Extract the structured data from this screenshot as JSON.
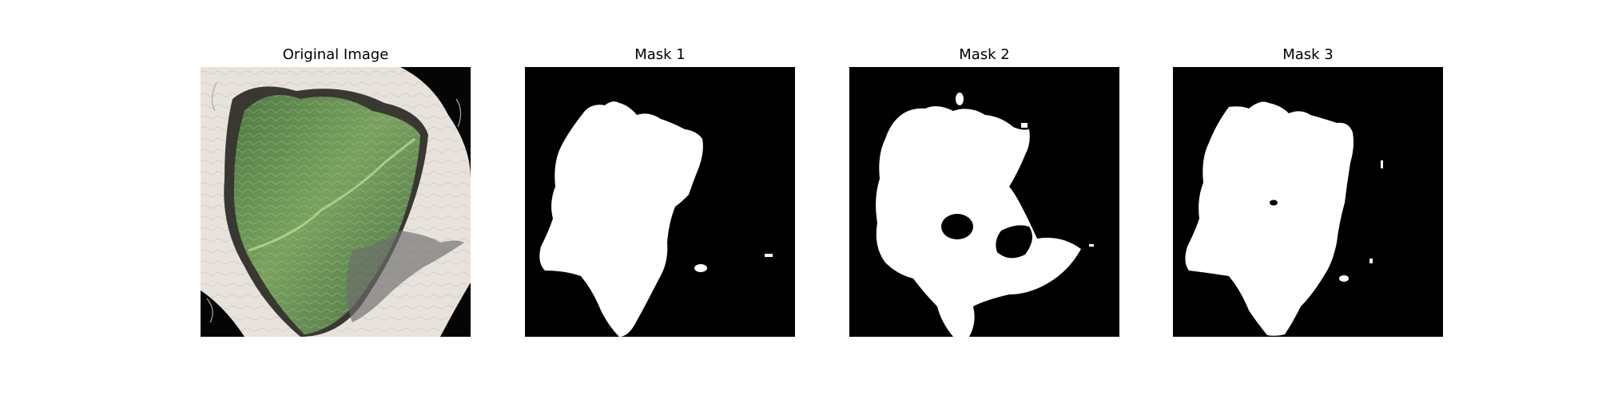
{
  "figure": {
    "panels": [
      {
        "title": "Original Image"
      },
      {
        "title": "Mask 1"
      },
      {
        "title": "Mask 2"
      },
      {
        "title": "Mask 3"
      }
    ]
  },
  "colors": {
    "mask_foreground": "#ffffff",
    "mask_background": "#000000",
    "leaf_green": "#5f8a52",
    "paper": "#e8e2dc"
  }
}
